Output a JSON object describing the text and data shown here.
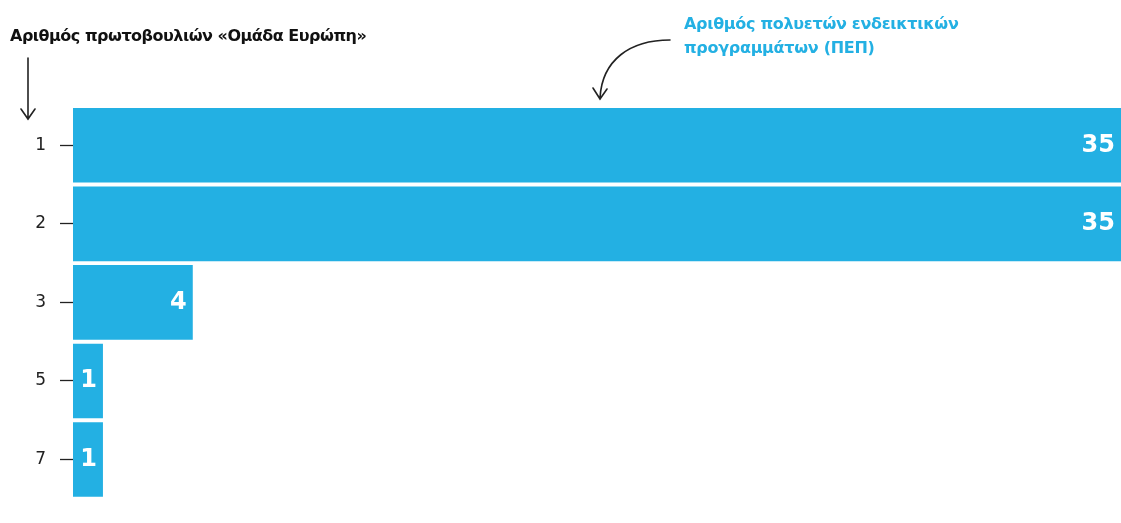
{
  "chart_data": {
    "type": "bar",
    "orientation": "horizontal",
    "ylabel": "Αριθμός πρωτοβουλιών «Ομάδα Ευρώπη»",
    "xlabel": "Αριθμός πολυετών ενδεικτικών προγραμμάτων (ΠΕΠ)",
    "categories": [
      "1",
      "2",
      "3",
      "5",
      "7"
    ],
    "values": [
      35,
      35,
      4,
      1,
      1
    ],
    "color": "#23b0e3",
    "data_labels": true,
    "legend": false
  }
}
